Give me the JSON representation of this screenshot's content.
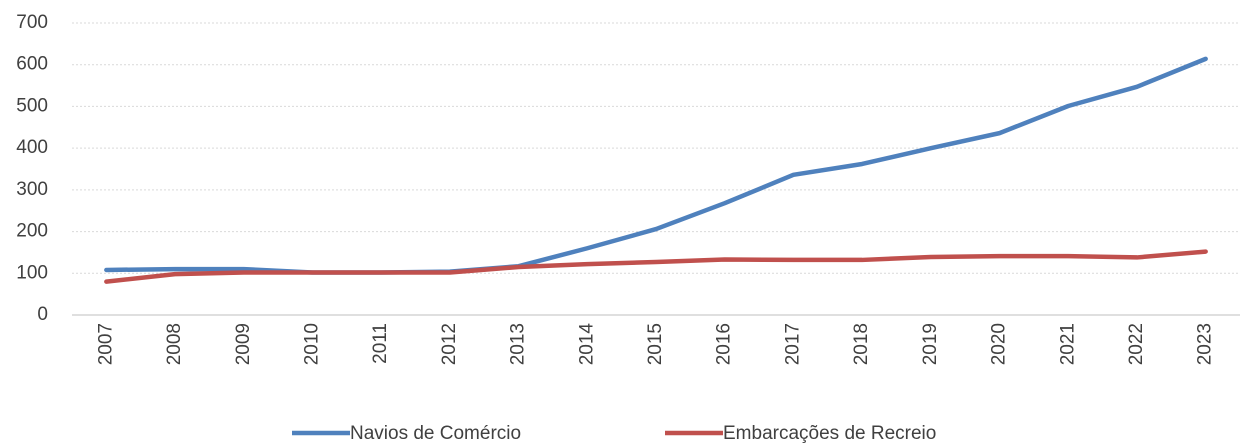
{
  "chart_data": {
    "type": "line",
    "categories": [
      "2007",
      "2008",
      "2009",
      "2010",
      "2011",
      "2012",
      "2013",
      "2014",
      "2015",
      "2016",
      "2017",
      "2018",
      "2019",
      "2020",
      "2021",
      "2022",
      "2023"
    ],
    "series": [
      {
        "name": "Navios de Comércio",
        "color": "#4f81bd",
        "values": [
          108,
          110,
          110,
          102,
          102,
          104,
          117,
          160,
          206,
          268,
          336,
          362,
          400,
          436,
          501,
          547,
          614
        ]
      },
      {
        "name": "Embarcações de Recreio",
        "color": "#c0504d",
        "values": [
          80,
          98,
          102,
          102,
          102,
          102,
          115,
          122,
          127,
          133,
          132,
          132,
          139,
          141,
          141,
          138,
          152
        ]
      }
    ],
    "ylim": [
      0,
      700
    ],
    "yticks": [
      0,
      100,
      200,
      300,
      400,
      500,
      600,
      700
    ],
    "grid": true,
    "legend": "bottom"
  }
}
